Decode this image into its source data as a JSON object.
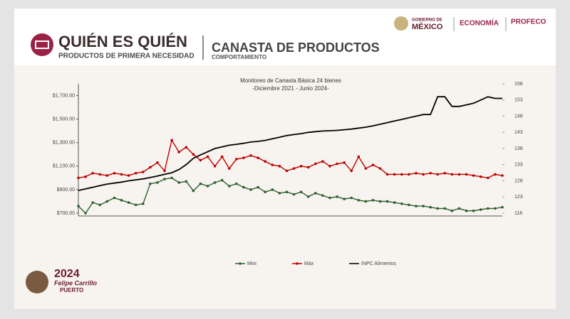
{
  "header": {
    "title": "QUIÉN ES QUIÉN",
    "subtitle": "PRODUCTOS DE PRIMERA NECESIDAD",
    "section": "CANASTA DE PRODUCTOS",
    "section_sub": "COMPORTAMIENTO",
    "gov_line1": "GOBIERNO DE",
    "gov_line2": "MÉXICO",
    "ministry": "ECONOMÍA",
    "agency": "PROFECO"
  },
  "footer": {
    "year": "2024",
    "name": "Felipe Carrillo",
    "surname": "PUERTO"
  },
  "chart_data": {
    "type": "line",
    "title": "Monitoreo de Canasta Básica 24 bienes",
    "subtitle": "-Diciembre 2021 - Junio 2024-",
    "categories": [
      null,
      null,
      null,
      null,
      null,
      null,
      null,
      null,
      null,
      null,
      null,
      null,
      null,
      null,
      null,
      null,
      null,
      null,
      null,
      null,
      null,
      null,
      null,
      null,
      null,
      null,
      null,
      null,
      null,
      null,
      null,
      null,
      null,
      null,
      null,
      null,
      null,
      null,
      null,
      null,
      null,
      null,
      null,
      null,
      null,
      null,
      null,
      null,
      null,
      null,
      null,
      null,
      null,
      null,
      null,
      null,
      null,
      null,
      null,
      null
    ],
    "series": [
      {
        "name": "Mini",
        "color": "#2f5f2f",
        "values": [
          760,
          700,
          790,
          770,
          800,
          830,
          810,
          790,
          770,
          780,
          950,
          960,
          990,
          1000,
          960,
          970,
          890,
          950,
          930,
          960,
          980,
          930,
          950,
          920,
          900,
          920,
          880,
          900,
          870,
          880,
          860,
          880,
          840,
          870,
          850,
          830,
          840,
          820,
          830,
          810,
          800,
          810,
          800,
          800,
          790,
          780,
          770,
          760,
          760,
          750,
          740,
          740,
          720,
          740,
          720,
          720,
          730,
          740,
          740,
          750
        ]
      },
      {
        "name": "Máx",
        "color": "#c00000",
        "values": [
          1000,
          1010,
          1040,
          1030,
          1020,
          1040,
          1030,
          1020,
          1040,
          1050,
          1090,
          1130,
          1060,
          1320,
          1220,
          1260,
          1200,
          1150,
          1180,
          1100,
          1180,
          1080,
          1160,
          1170,
          1190,
          1170,
          1140,
          1110,
          1100,
          1060,
          1080,
          1100,
          1090,
          1120,
          1140,
          1100,
          1120,
          1130,
          1060,
          1180,
          1080,
          1110,
          1080,
          1030,
          1030,
          1030,
          1030,
          1040,
          1030,
          1040,
          1030,
          1040,
          1030,
          1030,
          1030,
          1020,
          1010,
          1000,
          1030,
          1020
        ]
      },
      {
        "name": "INPC Alimentos",
        "color": "#000000",
        "axis": "y2",
        "values": [
          125,
          125.5,
          126,
          126.5,
          127,
          127.3,
          127.6,
          128,
          128.3,
          128.6,
          129,
          129.5,
          130,
          130.5,
          131.5,
          133,
          135,
          136,
          137,
          138,
          138.5,
          139,
          139.3,
          139.6,
          140,
          140.2,
          140.5,
          141,
          141.5,
          142,
          142.3,
          142.6,
          143,
          143.2,
          143.4,
          143.5,
          143.6,
          143.8,
          144,
          144.3,
          144.6,
          145,
          145.5,
          146,
          146.5,
          147,
          147.5,
          148,
          148.5,
          148.5,
          154,
          154,
          151,
          151,
          151.5,
          152,
          153,
          154,
          153.5,
          153.5
        ]
      }
    ],
    "ylim": [
      700,
      1800
    ],
    "yticks": [
      {
        "value": 700,
        "label": "$700.00"
      },
      {
        "value": 900,
        "label": "$900.00"
      },
      {
        "value": 1100,
        "label": "$1,100.00"
      },
      {
        "value": 1300,
        "label": "$1,300.00"
      },
      {
        "value": 1500,
        "label": "$1,500.00"
      },
      {
        "value": 1700,
        "label": "$1,700.00"
      }
    ],
    "y2lim": [
      118,
      158
    ],
    "y2ticks": [
      118,
      123,
      128,
      133,
      138,
      143,
      148,
      153,
      158
    ],
    "legend": "bottom"
  }
}
